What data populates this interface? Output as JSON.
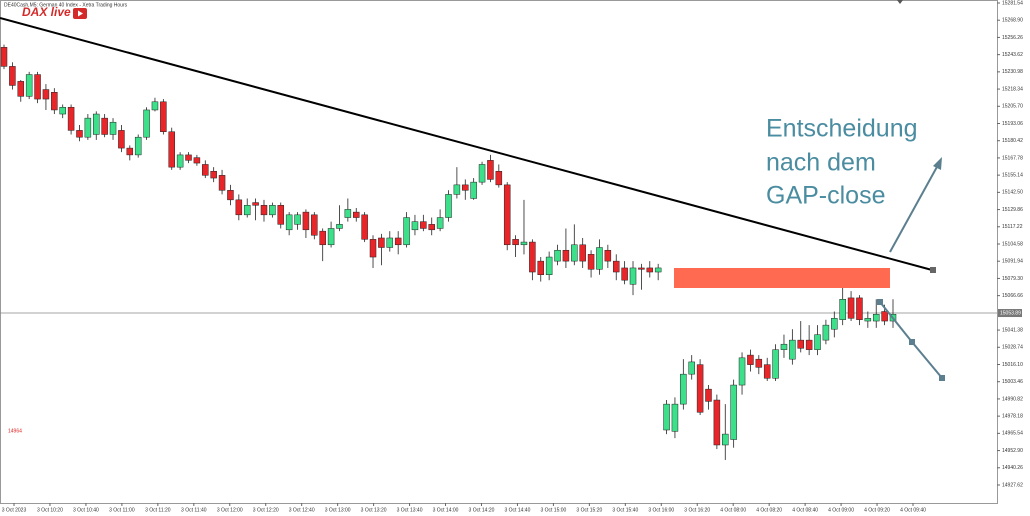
{
  "chart_data": {
    "type": "candlestick",
    "title": "DE40Cash,M5: German 40 Index - Xetra Trading Hours",
    "logo": "DAX live",
    "annotation": [
      "Entscheidung",
      "nach dem",
      "GAP-close"
    ],
    "price_note": 14964,
    "last_price": 15053.89,
    "up_color": "#3de08a",
    "down_color": "#e8262a",
    "ylim": [
      14914.4,
      15283.74
    ],
    "yticks": [
      14927.62,
      14940.26,
      {
        "value": 14952.9,
        "label": "14952.90"
      },
      14965.54,
      14978.18,
      14990.82,
      15003.46,
      {
        "value": 15016.1,
        "label": "15016.10"
      },
      15028.74,
      15041.38,
      15066.66,
      {
        "value": 15079.3,
        "label": "15079.30"
      },
      15091.94,
      15104.58,
      15117.22,
      15129.86,
      {
        "value": 15142.5,
        "label": "15142.50"
      },
      15155.14,
      15167.78,
      15180.42,
      15193.06,
      {
        "value": 15205.7,
        "label": "15205.70"
      },
      15218.34,
      15230.98,
      15243.62,
      15256.26,
      {
        "value": 15268.9,
        "label": "15268.90"
      },
      15281.54
    ],
    "xlabels": [
      "3 Oct 2023",
      "3 Oct 10:20",
      "3 Oct 10:40",
      "3 Oct 11:00",
      "3 Oct 11:20",
      "3 Oct 11:40",
      "3 Oct 12:00",
      "3 Oct 12:20",
      "3 Oct 12:40",
      "3 Oct 13:00",
      "3 Oct 13:20",
      "3 Oct 13:40",
      "3 Oct 14:00",
      "3 Oct 14:20",
      "3 Oct 14:40",
      "3 Oct 15:00",
      "3 Oct 15:20",
      "3 Oct 15:40",
      "3 Oct 16:00",
      "3 Oct 16:20",
      "4 Oct 08:00",
      "4 Oct 08:20",
      "4 Oct 08:40",
      "4 Oct 09:00",
      "4 Oct 09:20",
      "4 Oct 09:40"
    ],
    "open": [
      15249,
      15235,
      15224,
      15213,
      15229,
      15218,
      15216,
      15200,
      15205,
      15188,
      15183,
      15185,
      15197,
      15185,
      15188,
      15175,
      15170,
      15183,
      15203,
      15209,
      15187,
      15161,
      15170,
      15168,
      15163,
      15158,
      15155,
      15144,
      15137,
      15126,
      15135,
      15133,
      15126,
      15133,
      15115,
      15119,
      15128,
      15126,
      15114,
      15104,
      15116,
      15124,
      15128,
      15126,
      15108,
      15109,
      15102,
      15109,
      15104,
      15115,
      15121,
      15119,
      15116,
      15124,
      15141,
      15148,
      15138,
      15150,
      15166,
      15158,
      15148,
      15108,
      15104,
      15106,
      15092,
      15082,
      15092,
      15100,
      15092,
      15104,
      15097,
      15086,
      15100,
      15092,
      15087,
      15075,
      15087,
      15087,
      15084,
      14968,
      14967,
      14987,
      15009,
      15016,
      14998,
      14990,
      14957,
      14961,
      15001,
      15023,
      15020,
      15016,
      15006,
      15027,
      15020,
      15034,
      15034,
      15027,
      15034,
      15042,
      15049,
      15065,
      15065,
      15048,
      15048,
      15055,
      15048
    ],
    "high": [
      15251,
      15238,
      15225,
      15231,
      15231,
      15222,
      15219,
      15207,
      15207,
      15192,
      15200,
      15202,
      15200,
      15197,
      15192,
      15177,
      15185,
      15205,
      15212,
      15211,
      15190,
      15172,
      15172,
      15170,
      15166,
      15161,
      15159,
      15148,
      15141,
      15138,
      15138,
      15137,
      15135,
      15135,
      15128,
      15128,
      15130,
      15128,
      15116,
      15121,
      15133,
      15138,
      15131,
      15128,
      15111,
      15112,
      15114,
      15114,
      15128,
      15126,
      15126,
      15124,
      15130,
      15144,
      15161,
      15152,
      15153,
      15165,
      15170,
      15163,
      15150,
      15111,
      15137,
      15108,
      15095,
      15099,
      15104,
      15116,
      15119,
      15109,
      15100,
      15108,
      15104,
      15097,
      15092,
      15092,
      15090,
      15092,
      15090,
      14990,
      14992,
      15020,
      15023,
      15020,
      15001,
      14994,
      14987,
      15005,
      15025,
      15027,
      15023,
      15021,
      15031,
      15038,
      15042,
      15048,
      15045,
      15045,
      15049,
      15055,
      15073,
      15070,
      15067,
      15055,
      15064,
      15060,
      15064
    ],
    "low": [
      15233,
      15218,
      15209,
      15211,
      15208,
      15203,
      15200,
      15197,
      15185,
      15180,
      15181,
      15181,
      15183,
      15181,
      15172,
      15166,
      15168,
      15181,
      15202,
      15185,
      15159,
      15159,
      15164,
      15162,
      15153,
      15150,
      15141,
      15133,
      15122,
      15124,
      15122,
      15121,
      15124,
      15116,
      15111,
      15115,
      15109,
      15108,
      15092,
      15102,
      15114,
      15121,
      15121,
      15106,
      15087,
      15089,
      15099,
      15097,
      15102,
      15111,
      15114,
      15111,
      15114,
      15121,
      15138,
      15137,
      15137,
      15148,
      15150,
      15146,
      15100,
      15095,
      15097,
      15078,
      15077,
      15078,
      15089,
      15087,
      15089,
      15087,
      15080,
      15082,
      15087,
      15078,
      15075,
      15067,
      15071,
      15080,
      15078,
      14965,
      14962,
      14983,
      15005,
      14979,
      14983,
      14954,
      14946,
      14955,
      14994,
      15011,
      15009,
      15004,
      15004,
      15021,
      15016,
      15025,
      15023,
      15023,
      15031,
      15036,
      15045,
      15048,
      15045,
      15043,
      15043,
      15045,
      15043
    ],
    "close": [
      15235,
      15221,
      15213,
      15229,
      15211,
      15211,
      15203,
      15205,
      15188,
      15183,
      15197,
      15200,
      15185,
      15194,
      15175,
      15170,
      15183,
      15203,
      15209,
      15187,
      15161,
      15170,
      15166,
      15164,
      15155,
      15153,
      15144,
      15137,
      15126,
      15133,
      15133,
      15126,
      15133,
      15119,
      15126,
      15126,
      15115,
      15111,
      15104,
      15116,
      15119,
      15130,
      15124,
      15108,
      15095,
      15102,
      15109,
      15104,
      15124,
      15121,
      15116,
      15115,
      15124,
      15141,
      15148,
      15144,
      15150,
      15163,
      15152,
      15148,
      15104,
      15104,
      15106,
      15084,
      15082,
      15095,
      15100,
      15092,
      15104,
      15092,
      15086,
      15102,
      15092,
      15084,
      15078,
      15087,
      15086,
      15084,
      15087,
      14987,
      14987,
      15009,
      15018,
      14981,
      14989,
      14957,
      14965,
      15001,
      15021,
      15016,
      15014,
      15006,
      15027,
      15031,
      15034,
      15028,
      15027,
      15038,
      15045,
      15050,
      15064,
      15050,
      15049,
      15050,
      15053,
      15048,
      15053
    ]
  }
}
